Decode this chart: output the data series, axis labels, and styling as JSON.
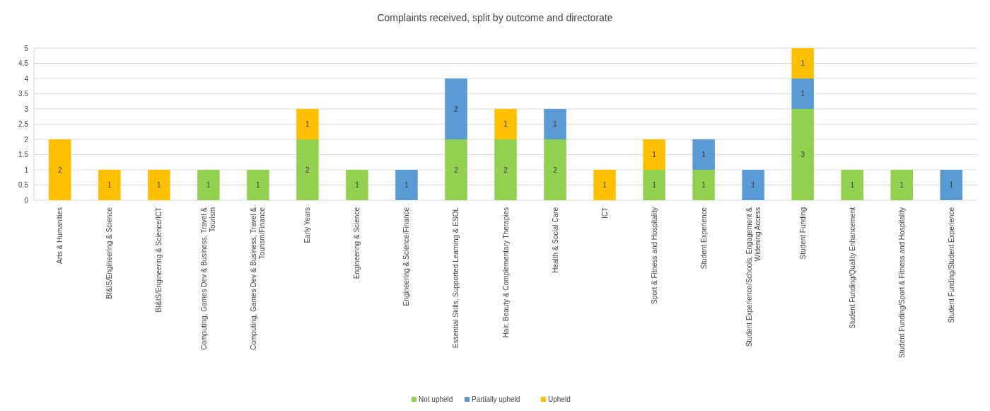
{
  "chart_data": {
    "type": "bar",
    "title": "Complaints received, split by outcome and directorate",
    "stacked": true,
    "data_labels": true,
    "grid": "y",
    "legend": "bottom",
    "categories": [
      "Arts & Humanities",
      "BI&IS/Engineering & Science",
      "BI&IS/Engineering & Science/ICT",
      "Computing, Games Dev & Business, Travel & Tourism",
      "Computing, Games Dev & Business, Travel & Tourism/Finance",
      "Early Years",
      "Engineering & Science",
      "Engineering & Science/Finance",
      "Essential Skills, Supported Learning & ESOL",
      "Hair, Beauty & Complementary Therapies",
      "Health & Social Care",
      "ICT",
      "Sport & Fitness and Hospitality",
      "Student Experience",
      "Student Experience/Schools, Engagement & Widening Access",
      "Student Funding",
      "Student Funding/Quality Enhancement",
      "Student Funding/Sport & Fitness and Hospitality",
      "Student Funding/Student Experience"
    ],
    "series": [
      {
        "name": "Not upheld",
        "color": "#92d050",
        "values": [
          null,
          null,
          null,
          1,
          1,
          2,
          1,
          null,
          2,
          2,
          2,
          null,
          1,
          1,
          null,
          3,
          1,
          1,
          null
        ]
      },
      {
        "name": "Partially upheld",
        "color": "#5b9bd5",
        "values": [
          null,
          null,
          null,
          null,
          null,
          null,
          null,
          1,
          2,
          null,
          1,
          null,
          null,
          1,
          1,
          1,
          null,
          null,
          1
        ]
      },
      {
        "name": "Upheld",
        "color": "#ffc000",
        "values": [
          2,
          1,
          1,
          null,
          null,
          1,
          null,
          null,
          null,
          1,
          null,
          1,
          1,
          null,
          null,
          1,
          null,
          null,
          null
        ]
      }
    ],
    "ylim": [
      0,
      5
    ],
    "yticks": [
      0,
      0.5,
      1,
      1.5,
      2,
      2.5,
      3,
      3.5,
      4,
      4.5,
      5
    ]
  }
}
